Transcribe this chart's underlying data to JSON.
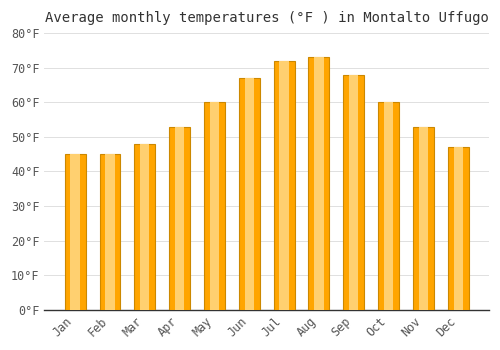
{
  "title": "Average monthly temperatures (°F ) in Montalto Uffugo",
  "months": [
    "Jan",
    "Feb",
    "Mar",
    "Apr",
    "May",
    "Jun",
    "Jul",
    "Aug",
    "Sep",
    "Oct",
    "Nov",
    "Dec"
  ],
  "values": [
    45,
    45,
    48,
    53,
    60,
    67,
    72,
    73,
    68,
    60,
    53,
    47
  ],
  "bar_color_main": "#FFA500",
  "bar_color_light": "#FFD070",
  "bar_edge_color": "#CC8800",
  "ylim": [
    0,
    80
  ],
  "yticks": [
    0,
    10,
    20,
    30,
    40,
    50,
    60,
    70,
    80
  ],
  "ytick_labels": [
    "0°F",
    "10°F",
    "20°F",
    "30°F",
    "40°F",
    "50°F",
    "60°F",
    "70°F",
    "80°F"
  ],
  "background_color": "#FFFFFF",
  "grid_color": "#E0E0E0",
  "title_fontsize": 10,
  "tick_fontsize": 8.5,
  "bar_width": 0.6
}
